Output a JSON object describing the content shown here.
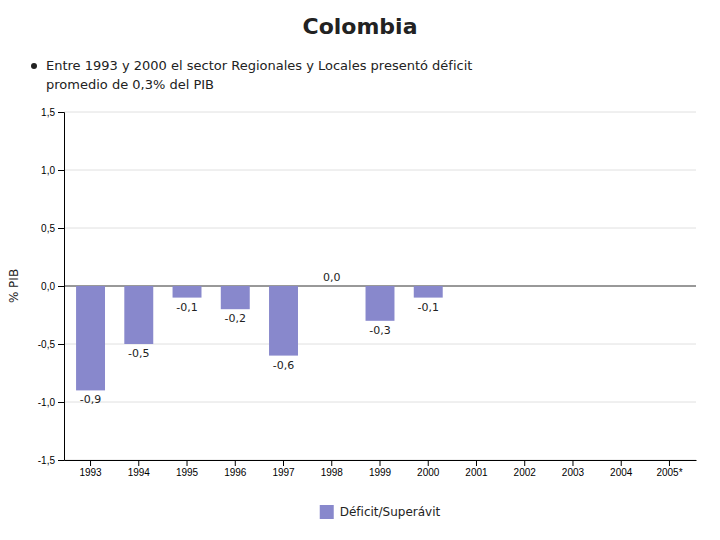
{
  "chart_data": {
    "type": "bar",
    "title": "Colombia",
    "annotations": [
      "Entre 1993 y 2000 el sector Regionales y Locales presentó déficit",
      "promedio de 0,3% del PIB"
    ],
    "categories": [
      "1993",
      "1994",
      "1995",
      "1996",
      "1997",
      "1998",
      "1999",
      "2000",
      "2001",
      "2002",
      "2003",
      "2004",
      "2005*"
    ],
    "series": [
      {
        "name": "Déficit/Superávit",
        "color": "#8888CC",
        "values": [
          -0.9,
          -0.5,
          -0.1,
          -0.2,
          -0.6,
          0.0,
          -0.3,
          -0.1,
          0.0,
          0.0,
          0.0,
          0.0,
          0.0
        ],
        "value_labels": [
          "-0,9",
          "-0,5",
          "-0,1",
          "-0,2",
          "-0,6",
          "0,0",
          "-0,3",
          "-0,1",
          null,
          null,
          null,
          null,
          null
        ]
      }
    ],
    "ylabel": "% PIB",
    "ylim": [
      -1.5,
      1.5
    ],
    "yticks": [
      {
        "value": -1.5,
        "label": "-1,5"
      },
      {
        "value": -1.0,
        "label": "-1,0"
      },
      {
        "value": -0.5,
        "label": "-0,5"
      },
      {
        "value": 0.0,
        "label": "0,0"
      },
      {
        "value": 0.5,
        "label": "0,5"
      },
      {
        "value": 1.0,
        "label": "1,0"
      },
      {
        "value": 1.5,
        "label": "1,5"
      }
    ],
    "grid": true,
    "legend": "bottom",
    "data_labels": true
  }
}
